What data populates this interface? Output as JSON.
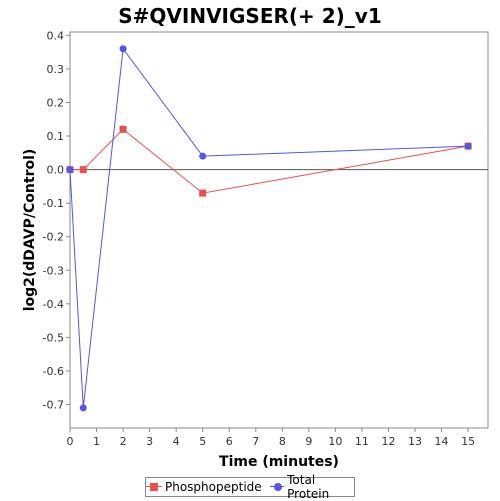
{
  "chart_data": {
    "type": "line",
    "title": "S#QVINVIGSER(+ 2)_v1",
    "xlabel": "Time (minutes)",
    "ylabel": "log2(dDAVP/Control)",
    "xlim": [
      0,
      15.75
    ],
    "ylim": [
      -0.77,
      0.41
    ],
    "x_ticks": [
      0,
      1,
      2,
      3,
      4,
      5,
      6,
      7,
      8,
      9,
      10,
      11,
      12,
      13,
      14,
      15
    ],
    "y_ticks": [
      0.4,
      0.3,
      0.2,
      0.1,
      0.0,
      -0.1,
      -0.2,
      -0.3,
      -0.4,
      -0.5,
      -0.6,
      -0.7
    ],
    "y_tick_labels": [
      "0.4",
      "0.3",
      "0.2",
      "0.1",
      "0.0",
      "-0.1",
      "-0.2",
      "-0.3",
      "-0.4",
      "-0.5",
      "-0.6",
      "-0.7"
    ],
    "grid": false,
    "zero_line": true,
    "legend_position": "bottom",
    "series": [
      {
        "name": "Phosphopeptide",
        "color": "#e8504f",
        "marker": "square",
        "x": [
          0,
          0.5,
          2,
          5,
          15
        ],
        "values": [
          0.0,
          0.0,
          0.12,
          -0.07,
          0.07
        ]
      },
      {
        "name": "Total Protein",
        "color": "#5555e6",
        "marker": "circle",
        "x": [
          0,
          0.5,
          2,
          5,
          15
        ],
        "values": [
          0.0,
          -0.71,
          0.36,
          0.04,
          0.07
        ]
      }
    ]
  }
}
